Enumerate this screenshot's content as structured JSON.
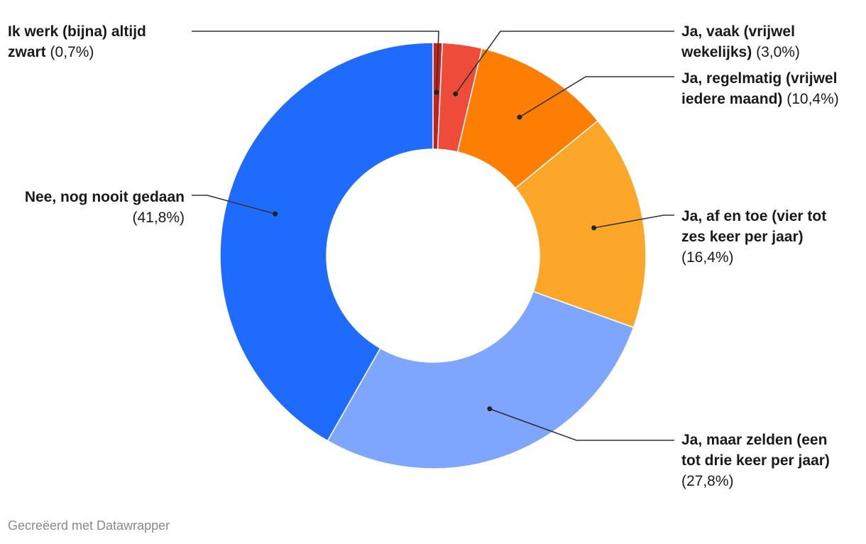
{
  "chart_data": {
    "type": "pie",
    "variant": "donut",
    "slices": [
      {
        "label": "Ik werk (bijna) altijd zwart",
        "value": 0.7,
        "display": "(0,7%)",
        "color": "#c4211f"
      },
      {
        "label": "Ja, vaak (vrijwel wekelijks)",
        "value": 3.0,
        "display": "(3,0%)",
        "color": "#ef4b3b"
      },
      {
        "label": "Ja, regelmatig (vrijwel iedere maand)",
        "value": 10.4,
        "display": "(10,4%)",
        "color": "#fd7e02"
      },
      {
        "label": "Ja, af en toe (vier tot zes keer per jaar)",
        "value": 16.4,
        "display": "(16,4%)",
        "color": "#fca72a"
      },
      {
        "label": "Ja, maar zelden (een tot drie keer per jaar)",
        "value": 27.8,
        "display": "(27,8%)",
        "color": "#7ea6fe"
      },
      {
        "label": "Nee, nog nooit gedaan",
        "value": 41.8,
        "display": "(41,8%)",
        "color": "#1f6bfe"
      }
    ]
  },
  "labels": {
    "s0": {
      "l1": "Ik werk (bijna) altijd",
      "l2": "zwart"
    },
    "s1": {
      "l1": "Ja, vaak (vrijwel",
      "l2": "wekelijks)"
    },
    "s2": {
      "l1": "Ja, regelmatig (vrijwel",
      "l2": "iedere maand)"
    },
    "s3": {
      "l1": "Ja, af en toe (vier tot",
      "l2": "zes keer per jaar)"
    },
    "s4": {
      "l1": "Ja, maar zelden (een",
      "l2": "tot drie keer per jaar)"
    },
    "s5": {
      "l1": "Nee, nog nooit gedaan"
    }
  },
  "credit": "Gecreëerd met Datawrapper"
}
